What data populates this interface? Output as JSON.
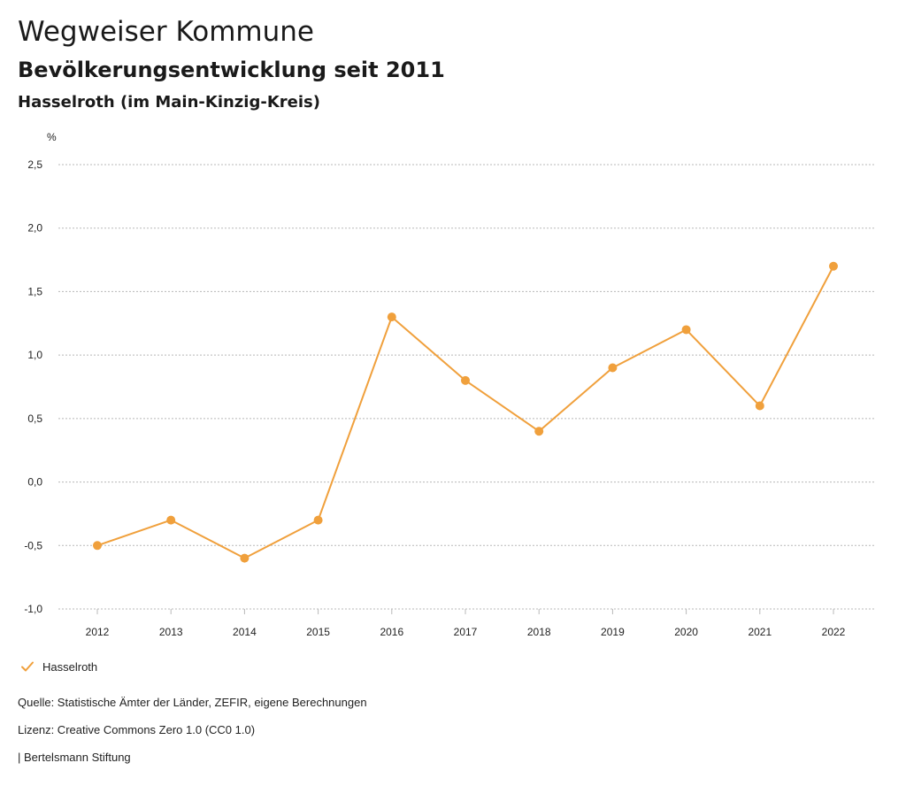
{
  "header": {
    "title": "Wegweiser Kommune",
    "subtitle": "Bevölkerungsentwicklung seit 2011",
    "region": "Hasselroth (im Main-Kinzig-Kreis)"
  },
  "footer": {
    "source": "Quelle: Statistische Ämter der Länder, ZEFIR, eigene Berechnungen",
    "license": "Lizenz: Creative Commons Zero 1.0 (CC0 1.0)",
    "publisher": "| Bertelsmann Stiftung"
  },
  "legend": {
    "label": "Hasselroth",
    "icon": "checkmark-icon"
  },
  "colors": {
    "series": "#f0a03c",
    "grid": "#b8b8b8",
    "text": "#222222"
  },
  "chart_data": {
    "type": "line",
    "ylabel": "%",
    "x": [
      "2012",
      "2013",
      "2014",
      "2015",
      "2016",
      "2017",
      "2018",
      "2019",
      "2020",
      "2021",
      "2022"
    ],
    "series": [
      {
        "name": "Hasselroth",
        "values": [
          -0.5,
          -0.3,
          -0.6,
          -0.3,
          1.3,
          0.8,
          0.4,
          0.9,
          1.2,
          0.6,
          1.7
        ]
      }
    ],
    "ylim": [
      -1.0,
      2.5
    ],
    "yticks": [
      -1.0,
      -0.5,
      0.0,
      0.5,
      1.0,
      1.5,
      2.0,
      2.5
    ],
    "ytick_labels": [
      "-1,0",
      "-0,5",
      "0,0",
      "0,5",
      "1,0",
      "1,5",
      "2,0",
      "2,5"
    ],
    "grid": true,
    "legend_position": "bottom-left"
  }
}
